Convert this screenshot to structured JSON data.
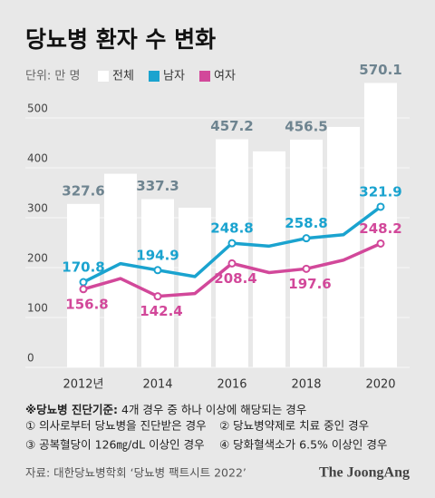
{
  "chart_data": {
    "type": "bar-line",
    "title": "당뇨병 환자 수 변화",
    "unit": "단위: 만 명",
    "categories": [
      "2012년",
      null,
      "2014",
      null,
      "2016",
      null,
      "2018",
      null,
      "2020"
    ],
    "series": [
      {
        "name": "전체",
        "color": "#ffffff",
        "kind": "bar",
        "values": [
          327.6,
          388,
          337.3,
          320,
          457.2,
          433,
          456.5,
          482,
          570.1
        ],
        "value_labels": [
          "327.6",
          null,
          "337.3",
          null,
          "457.2",
          null,
          "456.5",
          null,
          "570.1"
        ]
      },
      {
        "name": "남자",
        "color": "#1aa3cf",
        "kind": "line",
        "values": [
          170.8,
          208,
          194.9,
          182,
          248.8,
          243,
          258.8,
          266,
          321.9
        ],
        "value_labels": [
          "170.8",
          null,
          "194.9",
          null,
          "248.8",
          null,
          "258.8",
          null,
          "321.9"
        ]
      },
      {
        "name": "여자",
        "color": "#d2489a",
        "kind": "line",
        "values": [
          156.8,
          178,
          142.4,
          148,
          208.4,
          190,
          197.6,
          215,
          248.2
        ],
        "value_labels": [
          "156.8",
          null,
          "142.4",
          null,
          "208.4",
          null,
          "197.6",
          null,
          "248.2"
        ]
      }
    ],
    "ylim": [
      0,
      600
    ],
    "yticks": [
      0,
      100,
      200,
      300,
      400,
      500
    ],
    "grid": true,
    "notes": {
      "criteria_head": "※당뇨병 진단기준:",
      "criteria_text": " 4개 경우 중 하나 이상에 해당되는 경우",
      "items": [
        "① 의사로부터 당뇨병을 진단받은 경우",
        "② 당뇨병약제로 치료 중인 경우",
        "③ 공복혈당이 126㎎/dL 이상인 경우",
        "④ 당화혈색소가 6.5% 이상인 경우"
      ]
    },
    "source": "자료: 대한당뇨병학회 ‘당뇨병 팩트시트 2022’",
    "logo": "The JoongAng"
  }
}
